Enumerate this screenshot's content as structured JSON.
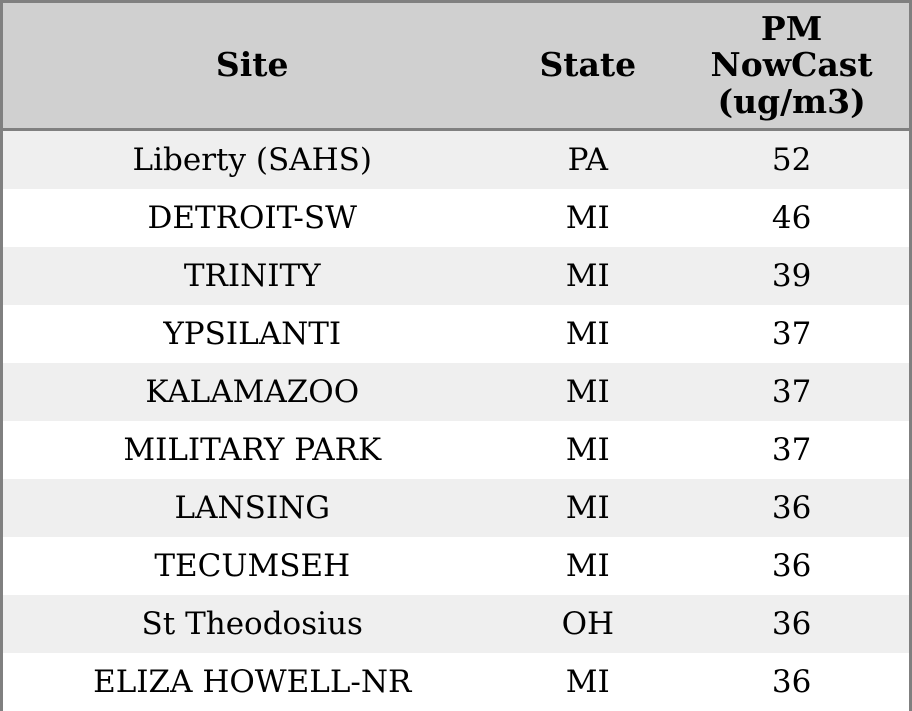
{
  "colors": {
    "header_bg": "#d0d0d0",
    "row_alt_bg": "#efefef",
    "row_bg": "#ffffff",
    "border": "#808080",
    "text": "#000000"
  },
  "table": {
    "columns": [
      {
        "label": "Site"
      },
      {
        "label": "State"
      },
      {
        "label": "PM NowCast (ug/m3)"
      }
    ],
    "rows": [
      {
        "site": "Liberty (SAHS)",
        "state": "PA",
        "pm": "52"
      },
      {
        "site": "DETROIT-SW",
        "state": "MI",
        "pm": "46"
      },
      {
        "site": "TRINITY",
        "state": "MI",
        "pm": "39"
      },
      {
        "site": "YPSILANTI",
        "state": "MI",
        "pm": "37"
      },
      {
        "site": "KALAMAZOO",
        "state": "MI",
        "pm": "37"
      },
      {
        "site": "MILITARY PARK",
        "state": "MI",
        "pm": "37"
      },
      {
        "site": "LANSING",
        "state": "MI",
        "pm": "36"
      },
      {
        "site": "TECUMSEH",
        "state": "MI",
        "pm": "36"
      },
      {
        "site": "St Theodosius",
        "state": "OH",
        "pm": "36"
      },
      {
        "site": "ELIZA HOWELL-NR",
        "state": "MI",
        "pm": "36"
      }
    ]
  }
}
